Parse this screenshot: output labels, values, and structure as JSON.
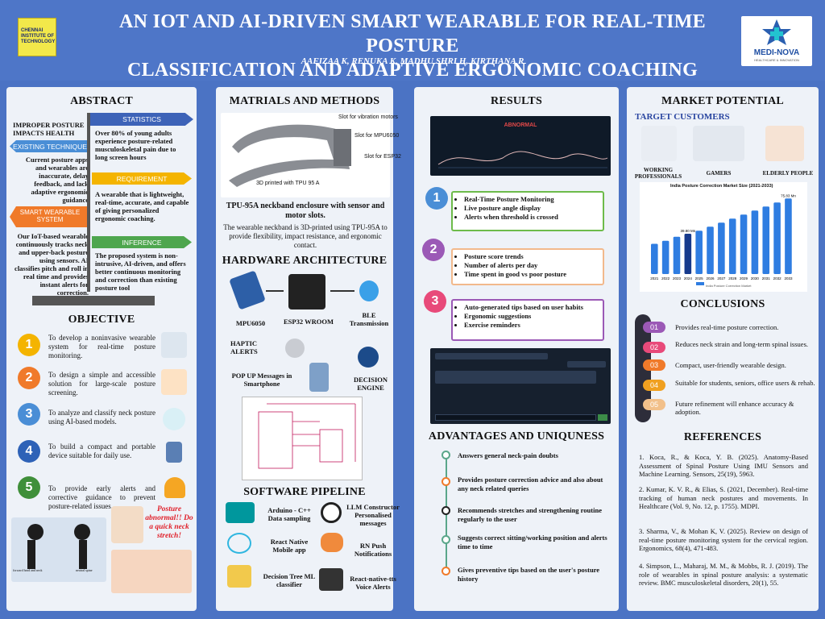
{
  "header": {
    "title_line1": "AN IOT AND AI-DRIVEN SMART WEARABLE FOR REAL-TIME POSTURE",
    "title_line2": "CLASSIFICATION AND ADAPTIVE ERGONOMIC COACHING",
    "authors": "AAFIZAA K, RENUKA K, MADHU SHRI H, KIRTHANA R",
    "logo_left": "CHENNAI INSTITUTE OF TECHNOLOGY",
    "logo_right_name": "MEDI-NOVA",
    "logo_right_tag": "HEALTHCARE & INNOVATION"
  },
  "abstract": {
    "heading": "ABSTRACT",
    "statistics_tag": "STATISTICS",
    "problem": "IMPROPER POSTURE IMPACTS HEALTH",
    "stat_text": "Over 80% of young adults experience posture-related musculoskeletal pain due to long screen hours",
    "existing_tag": "EXISTING TECHNIQUE",
    "existing_text": "Current posture apps and wearables are inaccurate, delay feedback, and lack adaptive ergonomic guidance",
    "requirement_tag": "REQUIREMENT",
    "requirement_text": "A wearable that is lightweight, real-time, accurate, and capable of giving personalized ergonomic coaching.",
    "smart_tag": "SMART WEARABLE SYSTEM",
    "smart_text": "Our IoT-based wearable continuously tracks neck and upper-back posture using sensors. AI classifies pitch and roll in real time and provides instant alerts for correction.",
    "inference_tag": "INFERENCE",
    "inference_text": "The proposed system is non-intrusive, AI-driven, and offers better continuous monitoring and correction than existing posture tool"
  },
  "objective": {
    "heading": "OBJECTIVE",
    "items": [
      {
        "n": "1",
        "text": "To develop a noninvasive wearable system for real-time posture monitoring."
      },
      {
        "n": "2",
        "text": "To design a simple and accessible solution for large-scale posture screening."
      },
      {
        "n": "3",
        "text": "To analyze and classify neck posture using AI-based models."
      },
      {
        "n": "4",
        "text": "To build a compact and portable device suitable for daily use."
      },
      {
        "n": "5",
        "text": "To provide early alerts and corrective guidance to prevent posture-related issues."
      }
    ],
    "alert_text": "Posture abnormal!! Do a quick neck stretch!",
    "fig_left": "forward head and neck",
    "fig_right": "neutral spine"
  },
  "methods": {
    "heading": "MATRIALS AND METHODS",
    "slot_vib": "Slot for vibration motors",
    "slot_mpu": "Slot for MPU6050",
    "slot_esp": "Slot for ESP32",
    "printed": "3D printed with TPU 95 A",
    "caption_title": "TPU-95A neckband enclosure with sensor and motor slots.",
    "caption_text": "The wearable neckband is 3D-printed using TPU-95A to provide flexibility, impact resistance, and ergonomic contact.",
    "hw_heading": "HARDWARE ARCHITECTURE",
    "mpu": "MPU6050",
    "esp": "ESP32 WROOM",
    "ble": "BLE Transmission",
    "haptic": "HAPTIC ALERTS",
    "popup": "POP UP Messages in Smartphone",
    "decision": "DECISION ENGINE",
    "sw_heading": "SOFTWARE PIPELINE",
    "sw": [
      {
        "text": "Arduino - C++ Data sampling",
        "icon": "arduino-icon"
      },
      {
        "text": "LLM Constructor Personalised messages",
        "icon": "openai-icon"
      },
      {
        "text": "React Native Mobile app",
        "icon": "react-icon"
      },
      {
        "text": "RN Push Notifications",
        "icon": "chat-bubble-icon"
      },
      {
        "text": "Decision Tree ML classifier",
        "icon": "tree-diagram-icon"
      },
      {
        "text": "React-native-tts Voice Alerts",
        "icon": "speech-icon"
      }
    ]
  },
  "results": {
    "heading": "RESULTS",
    "status": "ABNORMAL",
    "items": [
      {
        "n": "1",
        "lines": [
          "Real-Time Posture Monitoring",
          "Live posture angle display",
          "Alerts when threshold is crossed"
        ]
      },
      {
        "n": "2",
        "lines": [
          "Posture score trends",
          "Number of alerts per day",
          "Time spent in good vs poor posture"
        ]
      },
      {
        "n": "3",
        "lines": [
          "Auto-generated tips based on user habits",
          "Ergonomic suggestions",
          "Exercise reminders"
        ]
      }
    ],
    "adv_heading": "ADVANTAGES AND UNIQUNESS",
    "adv": [
      "Answers general neck-pain doubts",
      "Provides posture correction advice and also about any neck related queries",
      "Recommends stretches and strengthening routine regularly to the user",
      "Suggests correct sitting/working position and alerts time to time",
      "Gives preventive tips based on the user's posture history"
    ]
  },
  "market": {
    "heading": "MARKET POTENTIAL",
    "target": "TARGET CUSTOMERS",
    "customers": [
      "WORKING PROFESSIONALS",
      "GAMERS",
      "ELDERLY PEOPLE"
    ]
  },
  "chart_data": {
    "type": "bar",
    "title": "India Posture Correction Market Size (2021-2033)",
    "categories": [
      "2021",
      "2022",
      "2023",
      "2024",
      "2025",
      "2026",
      "2027",
      "2028",
      "2029",
      "2030",
      "2031",
      "2032",
      "2033"
    ],
    "values": [
      30,
      33,
      37,
      40,
      43,
      47,
      51,
      55,
      59,
      63,
      67,
      71,
      75
    ],
    "highlighted": "2024",
    "value_labels": {
      "2024": "39.80 Mn",
      "2033": "75.83 Mn"
    },
    "legend": "India Posture Correction Market",
    "colors": {
      "bars": "#2f7de1",
      "highlight": "#163a8c"
    }
  },
  "conclusions": {
    "heading": "CONCLUSIONS",
    "items": [
      {
        "n": "01",
        "text": "Provides real-time posture correction.",
        "color": "#9b59b6"
      },
      {
        "n": "02",
        "text": "Reduces neck strain and long-term spinal issues.",
        "color": "#e84a7a"
      },
      {
        "n": "03",
        "text": "Compact, user-friendly wearable design.",
        "color": "#f07a2a"
      },
      {
        "n": "04",
        "text": "Suitable for students, seniors, office users & rehab.",
        "color": "#f0a020"
      },
      {
        "n": "05",
        "text": "Future refinement will enhance accuracy & adoption.",
        "color": "#f2c08a"
      }
    ]
  },
  "references": {
    "heading": "REFERENCES",
    "items": [
      "1. Koca, R., & Koca, Y. B. (2025). Anatomy-Based Assessment of Spinal Posture Using IMU Sensors and Machine Learning. Sensors, 25(19), 5963.",
      "2. Kumar, K. V. R., & Elias, S. (2021, December). Real-time tracking of human neck postures and movements. In Healthcare (Vol. 9, No. 12, p. 1755). MDPI.",
      "3. Sharma, V., & Mohan K, V. (2025). Review on design of real-time posture monitoring system for the cervical region. Ergonomics, 68(4), 471-483.",
      "4. Simpson, L., Maharaj, M. M., & Mobbs, R. J. (2019). The role of wearables in spinal posture analysis: a systematic review. BMC musculoskeletal disorders, 20(1), 55."
    ]
  }
}
